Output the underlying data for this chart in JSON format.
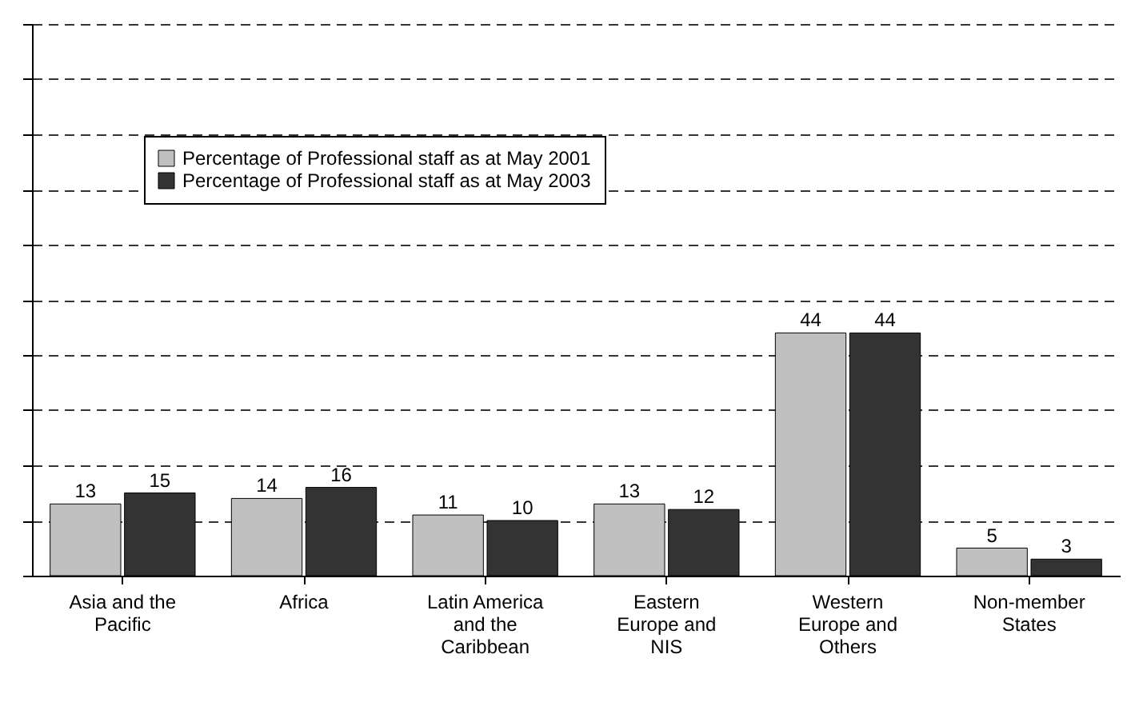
{
  "chart_data": {
    "type": "bar",
    "categories": [
      "Asia and the Pacific",
      "Africa",
      "Latin America and the Caribbean",
      "Eastern Europe and NIS",
      "Western Europe and Others",
      "Non-member States"
    ],
    "series": [
      {
        "name": "Percentage of Professional staff as at May 2001",
        "color": "#c0c0c0",
        "values": [
          13,
          14,
          11,
          13,
          44,
          5
        ]
      },
      {
        "name": "Percentage of Professional staff as at May 2003",
        "color": "#333333",
        "values": [
          15,
          16,
          10,
          12,
          44,
          3
        ]
      }
    ],
    "ylim": [
      0,
      100
    ],
    "yticks": [
      {
        "value": 0,
        "label": null
      },
      {
        "value": 10,
        "label": null
      },
      {
        "value": 20,
        "label": null
      },
      {
        "value": 30,
        "label": null
      },
      {
        "value": 40,
        "label": null
      },
      {
        "value": 50,
        "label": null
      },
      {
        "value": 60,
        "label": null
      },
      {
        "value": 70,
        "label": null
      },
      {
        "value": 80,
        "label": null
      },
      {
        "value": 90,
        "label": null
      },
      {
        "value": 100,
        "label": null
      }
    ],
    "grid": "y",
    "legend": "top left",
    "data_labels": true
  }
}
